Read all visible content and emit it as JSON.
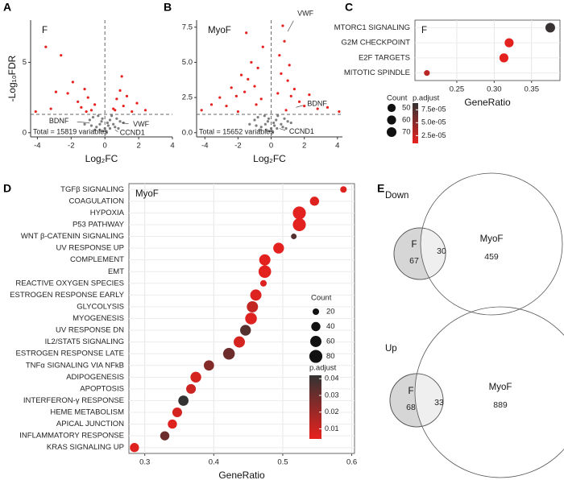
{
  "chart_data": [
    {
      "type": "volcano",
      "panel_label": "A",
      "annotation": "F",
      "note": "Total = 15819 variables",
      "x_label": "Log₂FC",
      "y_label": "-Log₁₀FDR",
      "xlim": [
        -4.4,
        4
      ],
      "ylim": [
        -0.3,
        8
      ],
      "xticks": [
        -4,
        -2,
        0,
        2,
        4
      ],
      "yticks": [
        0,
        5
      ],
      "hline": 1.3,
      "vline": 0,
      "series": [
        {
          "color": "#7f7f7f",
          "x": [
            -1.2,
            -0.9,
            -0.7,
            -0.5,
            -0.4,
            -0.3,
            -0.2,
            -0.1,
            0,
            0.1,
            0.2,
            0.3,
            0.4,
            0.5,
            0.7,
            0.9,
            1.1,
            -0.6,
            -0.3,
            0.3,
            0.6,
            -0.8,
            0.8,
            -0.15,
            0.15
          ],
          "y": [
            0.6,
            0.9,
            1.1,
            0.4,
            1.2,
            0.2,
            0.8,
            0.1,
            0.3,
            0.05,
            0.5,
            0.9,
            1.2,
            0.6,
            1.0,
            0.8,
            0.7,
            0.2,
            0.6,
            0.3,
            0.4,
            0.5,
            0.3,
            1.0,
            0.7
          ]
        },
        {
          "color": "#e8211e",
          "x": [
            -4.1,
            -3.5,
            -2.6,
            -2.2,
            -1.9,
            -1.6,
            -1.4,
            -1.2,
            -1.0,
            -0.8,
            -0.6,
            0.5,
            0.7,
            0.9,
            1.1,
            1.3,
            1.6,
            1.9,
            2.4,
            -3.2,
            -2.9,
            -1.1,
            0.6,
            1.0
          ],
          "y": [
            1.5,
            6.1,
            5.5,
            2.8,
            3.6,
            2.2,
            1.8,
            3.1,
            2.5,
            1.6,
            2.0,
            1.7,
            2.4,
            3.0,
            1.9,
            2.6,
            1.5,
            2.1,
            1.6,
            1.7,
            2.9,
            1.5,
            1.6,
            4.0
          ]
        }
      ],
      "labeled_points": [
        {
          "label": "BDNF",
          "x": -0.9,
          "y": 0.7
        },
        {
          "label": "VWF",
          "x": 1.0,
          "y": 0.7
        },
        {
          "label": "CCND1",
          "x": 0.6,
          "y": 0.2
        }
      ]
    },
    {
      "type": "volcano",
      "panel_label": "B",
      "annotation": "MyoF",
      "note": "Total = 15652 variables",
      "x_label": "Log₂FC",
      "y_label": "",
      "xlim": [
        -4.5,
        4.3
      ],
      "ylim": [
        -0.3,
        8
      ],
      "xticks": [
        -4,
        -2,
        0,
        2,
        4
      ],
      "yticks": [
        {
          "value": 0,
          "label": "0.0"
        },
        2.5,
        {
          "value": 5,
          "label": "5.0"
        },
        7.5
      ],
      "hline": 1.3,
      "vline": 0,
      "series": [
        {
          "color": "#7f7f7f",
          "x": [
            -1.3,
            -1.0,
            -0.8,
            -0.6,
            -0.4,
            -0.3,
            -0.2,
            -0.1,
            0,
            0.1,
            0.2,
            0.3,
            0.4,
            0.6,
            0.8,
            1.0,
            1.2,
            -0.7,
            -0.35,
            0.35,
            0.7,
            -0.9,
            0.9,
            -0.15,
            0.15
          ],
          "y": [
            0.6,
            0.9,
            1.1,
            0.4,
            1.2,
            0.2,
            0.8,
            0.1,
            0.3,
            0.05,
            0.5,
            0.9,
            1.2,
            0.6,
            1.0,
            0.8,
            0.7,
            0.2,
            0.6,
            0.3,
            0.4,
            0.5,
            0.3,
            1.0,
            0.7
          ]
        },
        {
          "color": "#e8211e",
          "x": [
            -4.2,
            -3.6,
            -3.1,
            -2.7,
            -2.4,
            -2.1,
            -1.8,
            -1.6,
            -1.4,
            -1.2,
            -1.0,
            -0.8,
            -0.6,
            -0.5,
            0.4,
            0.5,
            0.6,
            0.8,
            1.0,
            1.2,
            1.4,
            1.7,
            2.0,
            2.3,
            2.8,
            3.4,
            4.1,
            -1.5,
            -0.9,
            0.7,
            1.1,
            -2.0,
            0.9
          ],
          "y": [
            1.6,
            2.0,
            2.5,
            1.9,
            3.2,
            2.6,
            4.1,
            2.9,
            3.8,
            5.0,
            3.3,
            4.6,
            2.4,
            6.1,
            2.8,
            5.5,
            4.2,
            6.5,
            3.7,
            2.6,
            3.1,
            2.2,
            1.9,
            2.7,
            1.7,
            1.8,
            1.5,
            7.1,
            2.0,
            7.6,
            4.8,
            1.5,
            1.6
          ]
        }
      ],
      "labeled_points": [
        {
          "label": "VWF",
          "x": 1.0,
          "y": 7.2
        },
        {
          "label": "BDNF",
          "x": 1.5,
          "y": 1.8
        },
        {
          "label": "CCND1",
          "x": 0.5,
          "y": 0.3
        }
      ]
    },
    {
      "type": "dot",
      "panel_label": "C",
      "annotation": "F",
      "x_label": "GeneRatio",
      "categories": [
        "MTORC1 SIGNALING",
        "G2M CHECKPOINT",
        "E2F TARGETS",
        "MITOTIC SPINDLE"
      ],
      "values": [
        0.375,
        0.32,
        0.313,
        0.21
      ],
      "counts": [
        70,
        60,
        60,
        25
      ],
      "p_adjust": [
        8.6e-05,
        1.2e-05,
        1.2e-05,
        3e-05
      ],
      "xlim": [
        0.194,
        0.388
      ],
      "xticks": [
        0.25,
        {
          "value": 0.3,
          "label": "0.30"
        },
        0.35
      ],
      "grid": true,
      "count_legend_title": "Count",
      "count_legend": [
        50,
        60,
        70
      ],
      "color_legend_title": "p.adjust",
      "color_legend_ticks": [
        {
          "value": 7.5e-05,
          "label": "7.5e-05"
        },
        {
          "value": 5e-05,
          "label": "5.0e-05"
        },
        {
          "value": 2.5e-05,
          "label": "2.5e-05"
        }
      ],
      "color_lim": [
        1e-05,
        8.8e-05
      ],
      "color_low": "#e8211e",
      "color_high": "#333333"
    },
    {
      "type": "dot",
      "panel_label": "D",
      "annotation": "MyoF",
      "x_label": "GeneRatio",
      "categories": [
        "TGFβ SIGNALING",
        "COAGULATION",
        "HYPOXIA",
        "P53 PATHWAY",
        "WNT β-CATENIN SIGNALING",
        "UV RESPONSE UP",
        "COMPLEMENT",
        "EMT",
        "REACTIVE OXYGEN SPECIES",
        "ESTROGEN RESPONSE EARLY",
        "GLYCOLYSIS",
        "MYOGENESIS",
        "UV RESPONSE DN",
        "IL2/STAT5 SIGNALING",
        "ESTROGEN RESPONSE LATE",
        "TNFα SIGNALING VIA NFkB",
        "ADIPOGENESIS",
        "APOPTOSIS",
        "INTERFERON-γ RESPONSE",
        "HEME METABOLISM",
        "APICAL JUNCTION",
        "INFLAMMATORY RESPONSE",
        "KRAS SIGNALING UP"
      ],
      "values": [
        0.588,
        0.546,
        0.524,
        0.524,
        0.516,
        0.494,
        0.474,
        0.474,
        0.472,
        0.461,
        0.456,
        0.454,
        0.446,
        0.437,
        0.422,
        0.393,
        0.374,
        0.367,
        0.356,
        0.347,
        0.34,
        0.329,
        0.285
      ],
      "counts": [
        20,
        40,
        80,
        80,
        15,
        55,
        60,
        75,
        20,
        60,
        60,
        65,
        55,
        60,
        65,
        50,
        55,
        45,
        50,
        45,
        40,
        40,
        40
      ],
      "p_adjust": [
        0.006,
        0.006,
        0.005,
        0.005,
        0.035,
        0.005,
        0.005,
        0.005,
        0.006,
        0.006,
        0.012,
        0.006,
        0.035,
        0.008,
        0.03,
        0.025,
        0.008,
        0.01,
        0.042,
        0.008,
        0.006,
        0.03,
        0.006
      ],
      "xlim": [
        0.277,
        0.604
      ],
      "xticks": [
        0.3,
        0.4,
        0.5,
        0.6
      ],
      "grid": true,
      "count_legend_title": "Count",
      "count_legend": [
        20,
        40,
        60,
        80
      ],
      "color_legend_title": "p.adjust",
      "color_legend_ticks": [
        0.04,
        0.03,
        0.02,
        0.01
      ],
      "color_lim": [
        0.004,
        0.042
      ],
      "color_low": "#e8211e",
      "color_high": "#333333"
    },
    {
      "type": "venn",
      "panel_label": "E",
      "sets": [
        {
          "title": "Down",
          "left_label": "F",
          "left_only": 67,
          "overlap": 30,
          "right_label": "MyoF",
          "right_only": 459
        },
        {
          "title": "Up",
          "left_label": "F",
          "left_only": 68,
          "overlap": 33,
          "right_label": "MyoF",
          "right_only": 889
        }
      ]
    }
  ]
}
